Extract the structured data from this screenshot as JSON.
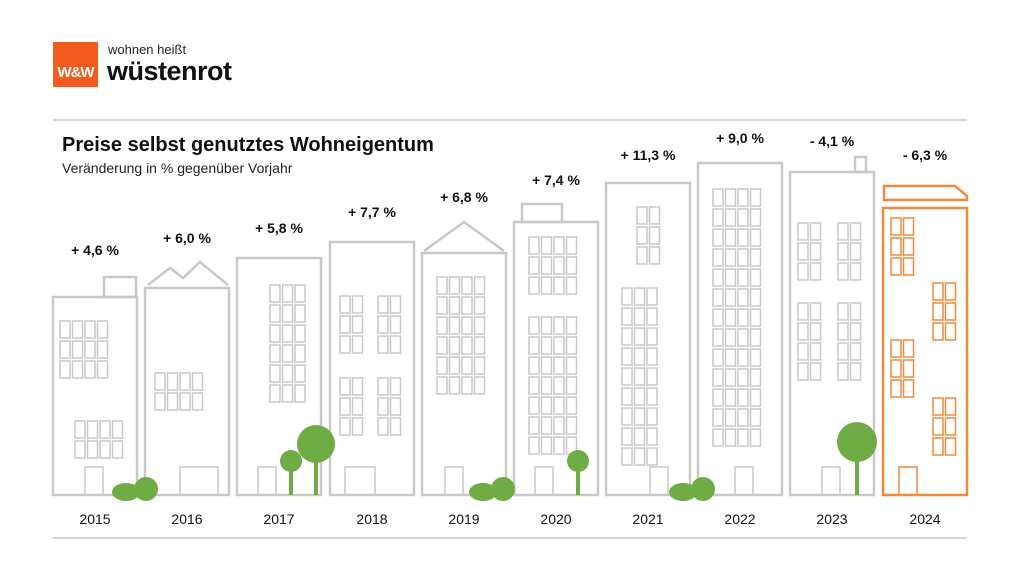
{
  "logo": {
    "mark": "W&W",
    "tagline": "wohnen heißt",
    "brand": "wüstenrot",
    "brand_color": "#f25a1e"
  },
  "chart_data": {
    "type": "bar",
    "title": "Preise selbst genutztes Wohneigentum",
    "subtitle": "Veränderung  in % gegenüber  Vorjahr",
    "categories": [
      "2015",
      "2016",
      "2017",
      "2018",
      "2019",
      "2020",
      "2021",
      "2022",
      "2023",
      "2024"
    ],
    "values": [
      4.6,
      6.0,
      5.8,
      7.7,
      6.8,
      7.4,
      11.3,
      9.0,
      -4.1,
      -6.3
    ],
    "labels": [
      "+ 4,6 %",
      "+ 6,0 %",
      "+ 5,8 %",
      "+ 7,7 %",
      "+ 6,8 %",
      "+ 7,4 %",
      "+ 11,3 %",
      "+ 9,0 %",
      "- 4,1 %",
      "- 6,3 %"
    ],
    "colors": {
      "building": "#c8c8c8",
      "highlight": "#f08a3c",
      "tree": "#6fac46"
    }
  }
}
